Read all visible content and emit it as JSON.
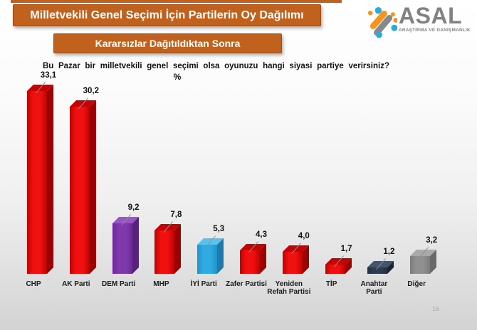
{
  "header": {
    "title": "Milletvekili Genel Seçimi İçin Partilerin Oy Dağılımı",
    "subtitle": "Kararsızlar Dağıtıldıktan Sonra"
  },
  "logo": {
    "name": "ASAL",
    "tagline": "ARAŞTIRMA VE DANIŞMANLIK"
  },
  "question": {
    "text": "Bu Pazar bir milletvekili genel seçimi olsa oyunuzu hangi siyasi partiye verirsiniz?",
    "unit": "%"
  },
  "footer": {
    "page_number": "16"
  },
  "theme": {
    "accent_orange": "#c0611e",
    "logo_orange": "#f7941d",
    "logo_blue": "#29abe2",
    "logo_gray": "#87888a",
    "logo_text_gray": "#808285"
  },
  "chart_data": {
    "type": "bar",
    "bar_style": "3d-column",
    "title": "Bu Pazar bir milletvekili genel seçimi olsa oyunuzu hangi siyasi partiye verirsiniz?",
    "xlabel": "",
    "ylabel": "%",
    "ylim": [
      0,
      35
    ],
    "grid": false,
    "legend": "none",
    "categories": [
      "CHP",
      "AK Parti",
      "DEM Parti",
      "MHP",
      "İYİ Parti",
      "Zafer Partisi",
      "Yeniden\nRefah Partisi",
      "TİP",
      "Anahtar Parti",
      "Diğer"
    ],
    "values": [
      33.1,
      30.2,
      9.2,
      7.8,
      5.3,
      4.3,
      4.0,
      1.7,
      1.2,
      3.2
    ],
    "value_labels": [
      "33,1",
      "30,2",
      "9,2",
      "7,8",
      "5,3",
      "4,3",
      "4,0",
      "1,7",
      "1,2",
      "3,2"
    ],
    "bar_colors": [
      "red",
      "red",
      "purple",
      "red",
      "lightblue",
      "red",
      "red",
      "red",
      "navy",
      "gray"
    ],
    "palette": {
      "red": {
        "front": "#f01010",
        "edge": "#bc0303",
        "side": "#9c0101",
        "top": "#c30404"
      },
      "purple": {
        "front": "#8038ad",
        "edge": "#6b2a94",
        "side": "#582180",
        "top": "#9a55c4"
      },
      "lightblue": {
        "front": "#2fabe1",
        "edge": "#1f93c9",
        "side": "#1d7ab1",
        "top": "#5cc2ec"
      },
      "navy": {
        "front": "#2d3c50",
        "edge": "#232f40",
        "side": "#1b2531",
        "top": "#42556b"
      },
      "gray": {
        "front": "#909090",
        "edge": "#7c7c7c",
        "side": "#696969",
        "top": "#a9a9a9"
      }
    }
  }
}
